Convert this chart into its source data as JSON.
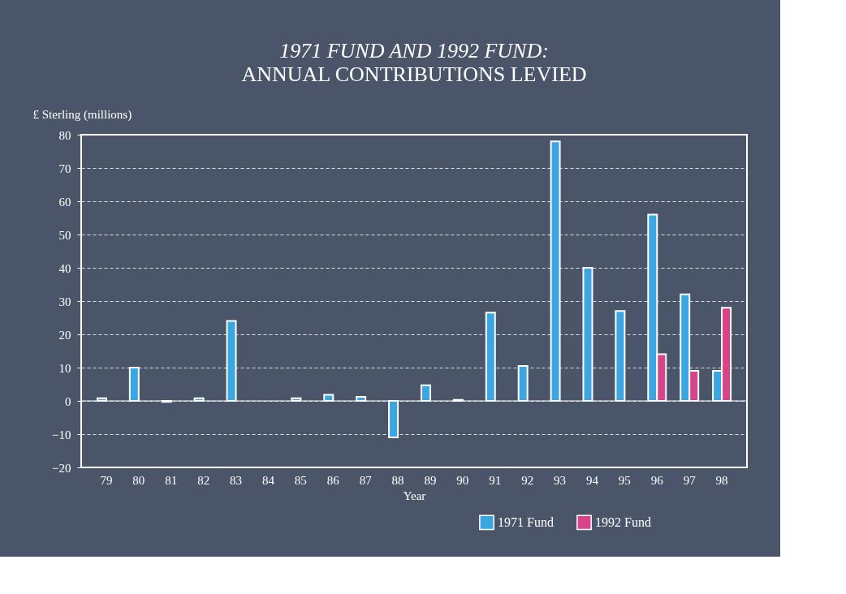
{
  "chart_data": {
    "type": "bar",
    "title": "1971 FUND AND 1992 FUND:",
    "subtitle": "ANNUAL CONTRIBUTIONS LEVIED",
    "xlabel": "Year",
    "ylabel": "£ Sterling (millions)",
    "categories": [
      "79",
      "80",
      "81",
      "82",
      "83",
      "84",
      "85",
      "86",
      "87",
      "88",
      "89",
      "90",
      "91",
      "92",
      "93",
      "94",
      "95",
      "96",
      "97",
      "98"
    ],
    "series": [
      {
        "name": "1971 Fund",
        "color": "#3aa6e2",
        "values": [
          0.8,
          10,
          -0.3,
          0.8,
          24,
          null,
          0.8,
          1.8,
          1.2,
          -11,
          4.7,
          0.3,
          26.5,
          10.5,
          78,
          40,
          27,
          56,
          32,
          9
        ]
      },
      {
        "name": "1992 Fund",
        "color": "#d8448c",
        "values": [
          null,
          null,
          null,
          null,
          null,
          null,
          null,
          null,
          null,
          null,
          null,
          null,
          null,
          null,
          null,
          null,
          null,
          14,
          9,
          28
        ]
      }
    ],
    "ylim": [
      -20,
      80
    ],
    "yticks": [
      -20,
      -10,
      0,
      10,
      20,
      30,
      40,
      50,
      60,
      70,
      80
    ],
    "grid": "y",
    "legend": "bottom right",
    "ref_lines": [
      {
        "axis": "y",
        "value": 0,
        "color": "#ffffff"
      }
    ]
  }
}
